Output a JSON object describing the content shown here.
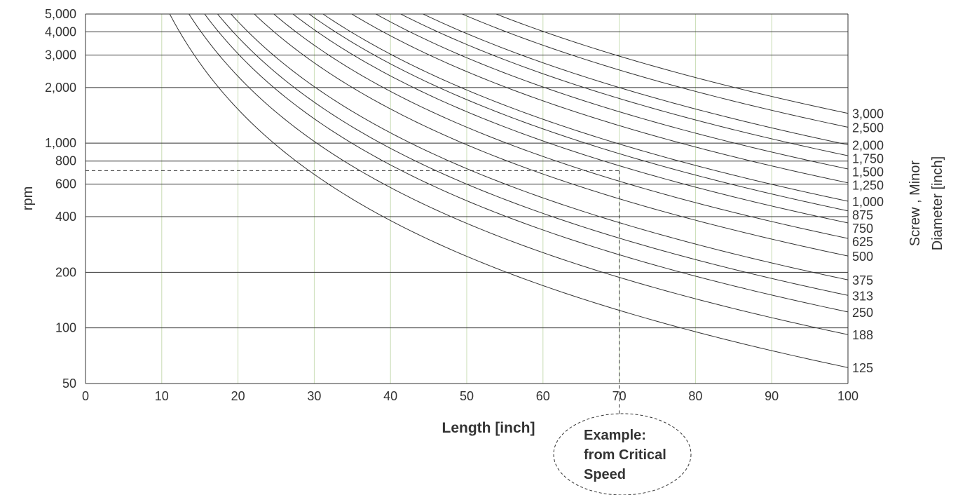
{
  "chart_data": {
    "type": "line",
    "xlabel": "Length [inch]",
    "ylabel": "rpm",
    "y2label_line1": "Screw , Minor",
    "y2label_line2": "Diameter [inch]",
    "xlim": [
      0,
      100
    ],
    "ylim": [
      50,
      5000
    ],
    "yscale": "log",
    "x_ticks": [
      "0",
      "10",
      "20",
      "30",
      "40",
      "50",
      "60",
      "70",
      "80",
      "90",
      "100"
    ],
    "x_tick_values": [
      0,
      10,
      20,
      30,
      40,
      50,
      60,
      70,
      80,
      90,
      100
    ],
    "y_ticks": [
      "5,000",
      "4,000",
      "3,000",
      "2,000",
      "1,000",
      "800",
      "600",
      "400",
      "200",
      "100",
      "50"
    ],
    "y_tick_values": [
      5000,
      4000,
      3000,
      2000,
      1000,
      800,
      600,
      400,
      200,
      100,
      50
    ],
    "grid": true,
    "series": [
      {
        "name": "3,000",
        "value_at_100": 1450
      },
      {
        "name": "2,500",
        "value_at_100": 1220
      },
      {
        "name": "2,000",
        "value_at_100": 980
      },
      {
        "name": "1,750",
        "value_at_100": 855
      },
      {
        "name": "1,500",
        "value_at_100": 725
      },
      {
        "name": "1,250",
        "value_at_100": 610
      },
      {
        "name": "1,000",
        "value_at_100": 485
      },
      {
        "name": "875",
        "value_at_100": 430
      },
      {
        "name": "750",
        "value_at_100": 370
      },
      {
        "name": "625",
        "value_at_100": 305
      },
      {
        "name": "500",
        "value_at_100": 245
      },
      {
        "name": "375",
        "value_at_100": 182
      },
      {
        "name": "313",
        "value_at_100": 150
      },
      {
        "name": "250",
        "value_at_100": 122
      },
      {
        "name": "188",
        "value_at_100": 92
      },
      {
        "name": "125",
        "value_at_100": 61
      }
    ],
    "example": {
      "x": 70,
      "y": 710,
      "text_lines": [
        "Example:",
        "from Critical",
        "Speed"
      ]
    }
  },
  "colors": {
    "curve": "#333333",
    "hgrid": "#333333",
    "vgrid": "#c8dcb4",
    "axis": "#333333"
  }
}
